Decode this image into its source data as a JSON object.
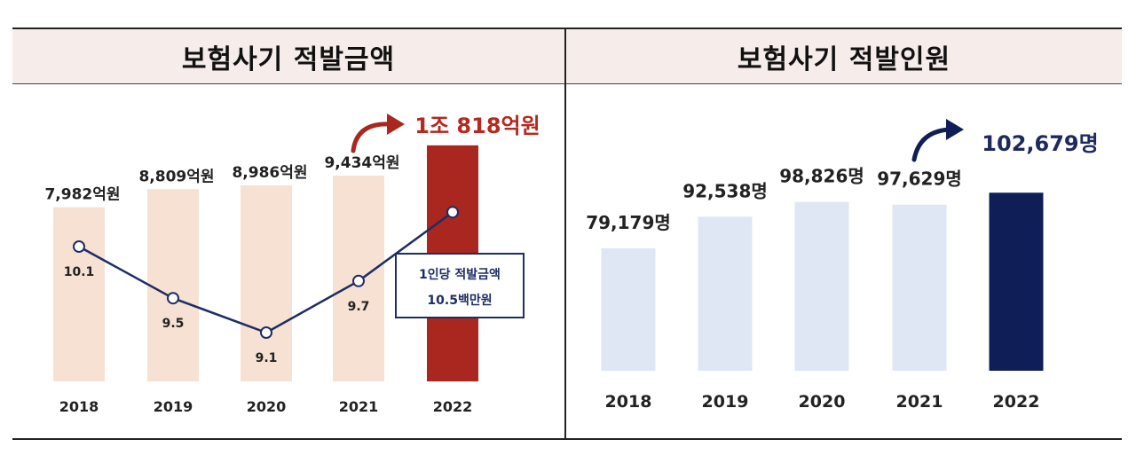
{
  "panels": {
    "left_title": "보험사기  적발금액",
    "right_title": "보험사기  적발인원"
  },
  "colors": {
    "header_bg": "#f6ece9",
    "left_bar": "#f6e1d3",
    "left_highlight": "#a9271e",
    "left_line": "#1e2d63",
    "left_callout_text": "#b42a1e",
    "right_bar": "#dee7f3",
    "right_highlight": "#0f1e57",
    "right_callout_text": "#1e2a5c"
  },
  "chart_data": [
    {
      "type": "bar",
      "categories": [
        "2018",
        "2019",
        "2020",
        "2021",
        "2022"
      ],
      "series": [
        {
          "values": [
            7982,
            8809,
            8986,
            9434,
            10818
          ]
        },
        {
          "type": "line",
          "values": [
            10.1,
            9.5,
            9.1,
            9.7,
            10.5
          ]
        }
      ],
      "bar_labels": [
        "7,982억원",
        "8,809억원",
        "8,986억원",
        "9,434억원",
        "1조 818억원"
      ],
      "line_labels": [
        "10.1",
        "9.5",
        "9.1",
        "9.7"
      ],
      "annotation_line1": "1인당 적발금액",
      "annotation_line2": "10.5백만원",
      "highlight_index": 4
    },
    {
      "type": "bar",
      "categories": [
        "2018",
        "2019",
        "2020",
        "2021",
        "2022"
      ],
      "series": [
        {
          "values": [
            79179,
            92538,
            98826,
            97629,
            102679
          ]
        }
      ],
      "bar_labels": [
        "79,179명",
        "92,538명",
        "98,826명",
        "97,629명",
        "102,679명"
      ],
      "highlight_index": 4
    }
  ]
}
